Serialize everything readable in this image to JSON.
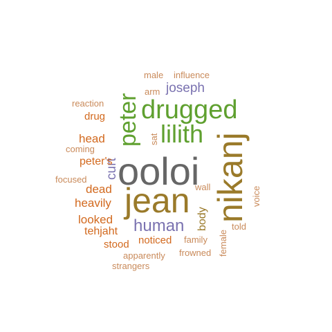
{
  "word_cloud": {
    "colors": {
      "gray": "#666666",
      "olive": "#9a7a2a",
      "green": "#5fa02f",
      "purple": "#7a72b0",
      "orange": "#d2691e",
      "tan": "#c98a5a"
    },
    "words": {
      "ooloi": "ooloi",
      "jean": "jean",
      "nikanj": "nikanj",
      "drugged": "drugged",
      "lilith": "lilith",
      "peter": "peter",
      "human": "human",
      "joseph": "joseph",
      "curt": "curt",
      "head": "head",
      "drug": "drug",
      "peters": "peter's",
      "dead": "dead",
      "heavily": "heavily",
      "looked": "looked",
      "tehjaht": "tehjaht",
      "stood": "stood",
      "noticed": "noticed",
      "body": "body",
      "wall": "wall",
      "sat": "sat",
      "arm": "arm",
      "male": "male",
      "influence": "influence",
      "reaction": "reaction",
      "coming": "coming",
      "focused": "focused",
      "voice": "voice",
      "told": "told",
      "female": "female",
      "family": "family",
      "frowned": "frowned",
      "apparently": "apparently",
      "strangers": "strangers"
    }
  }
}
